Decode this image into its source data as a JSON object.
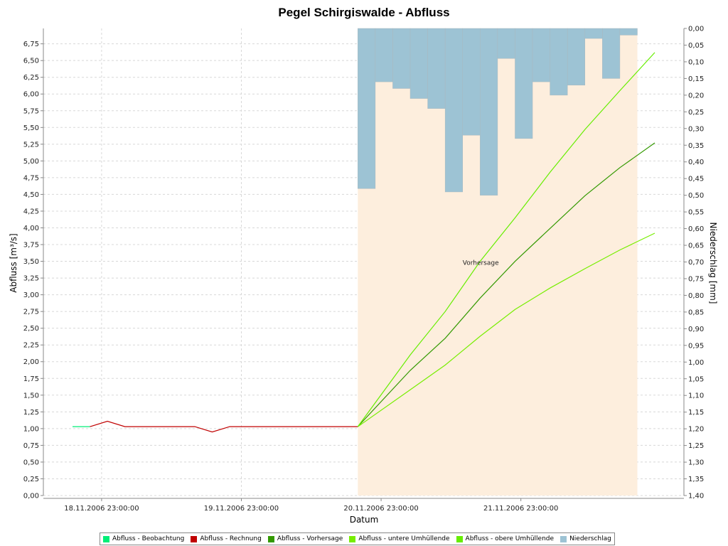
{
  "chart_data": {
    "type": "line",
    "title": "Pegel Schirgiswalde - Abfluss",
    "xlabel": "Datum",
    "ylabel": "Abfluss [m³/s]",
    "y2label": "Niederschlag [mm]",
    "x_tick_labels": [
      "18.11.2006 23:00:00",
      "19.11.2006 23:00:00",
      "20.11.2006 23:00:00",
      "21.11.2006 23:00:00"
    ],
    "x_tick_hours": [
      48,
      72,
      96,
      120
    ],
    "xlim_hours": [
      38,
      148
    ],
    "ylim": [
      0,
      6.98
    ],
    "y_ticks": [
      0,
      0.25,
      0.5,
      0.75,
      1.0,
      1.25,
      1.5,
      1.75,
      2.0,
      2.25,
      2.5,
      2.75,
      3.0,
      3.25,
      3.5,
      3.75,
      4.0,
      4.25,
      4.5,
      4.75,
      5.0,
      5.25,
      5.5,
      5.75,
      6.0,
      6.25,
      6.5,
      6.75
    ],
    "y2lim": [
      0,
      1.4
    ],
    "y2_ticks": [
      0,
      0.05,
      0.1,
      0.15,
      0.2,
      0.25,
      0.3,
      0.35,
      0.4,
      0.45,
      0.5,
      0.55,
      0.6,
      0.65,
      0.7,
      0.75,
      0.8,
      0.85,
      0.9,
      0.95,
      1.0,
      1.05,
      1.1,
      1.15,
      1.2,
      1.25,
      1.3,
      1.35,
      1.4
    ],
    "y2_inverted": true,
    "forecast_region": {
      "start_hour": 92,
      "end_hour": 140,
      "label": "Vorhersage",
      "color": "#fdeedd"
    },
    "grid": true,
    "legend_position": "bottom",
    "series": [
      {
        "name": "Abfluss - Beobachtung",
        "color": "#00ee77",
        "kind": "line",
        "axis": "left",
        "x": [
          43,
          46
        ],
        "values": [
          1.03,
          1.03
        ]
      },
      {
        "name": "Abfluss - Rechnung",
        "color": "#c00000",
        "kind": "line",
        "axis": "left",
        "x": [
          46,
          49,
          52,
          55,
          58,
          61,
          64,
          67,
          70,
          73,
          76,
          79,
          82,
          85,
          88,
          91,
          92
        ],
        "values": [
          1.03,
          1.11,
          1.03,
          1.03,
          1.03,
          1.03,
          1.03,
          0.95,
          1.03,
          1.03,
          1.03,
          1.03,
          1.03,
          1.03,
          1.03,
          1.03,
          1.03
        ]
      },
      {
        "name": "Abfluss - Vorhersage",
        "color": "#339900",
        "kind": "line",
        "axis": "left",
        "x": [
          92,
          101,
          107,
          113,
          119,
          125,
          131,
          137,
          143
        ],
        "values": [
          1.03,
          1.87,
          2.35,
          2.95,
          3.5,
          3.99,
          4.48,
          4.9,
          5.27
        ]
      },
      {
        "name": "Abfluss - untere Umhüllende",
        "color": "#77ee00",
        "kind": "line",
        "axis": "left",
        "x": [
          92,
          101,
          107,
          113,
          119,
          125,
          131,
          137,
          143
        ],
        "values": [
          1.03,
          1.58,
          1.95,
          2.38,
          2.78,
          3.1,
          3.39,
          3.67,
          3.92
        ]
      },
      {
        "name": "Abfluss - obere Umhüllende",
        "color": "#66ee00",
        "kind": "line",
        "axis": "left",
        "x": [
          92,
          101,
          107,
          113,
          119,
          125,
          131,
          137,
          143
        ],
        "values": [
          1.03,
          2.1,
          2.75,
          3.5,
          4.15,
          4.83,
          5.47,
          6.05,
          6.62
        ]
      },
      {
        "name": "Niederschlag",
        "color": "#9dc3d4",
        "kind": "bar",
        "axis": "right",
        "bar_width_hours": 3,
        "x": [
          92,
          95,
          98,
          101,
          104,
          107,
          110,
          113,
          116,
          119,
          122,
          125,
          128,
          131,
          134,
          137
        ],
        "values": [
          0.48,
          0.16,
          0.18,
          0.21,
          0.24,
          0.49,
          0.32,
          0.5,
          0.09,
          0.33,
          0.16,
          0.2,
          0.17,
          0.03,
          0.15,
          0.02
        ]
      }
    ]
  }
}
